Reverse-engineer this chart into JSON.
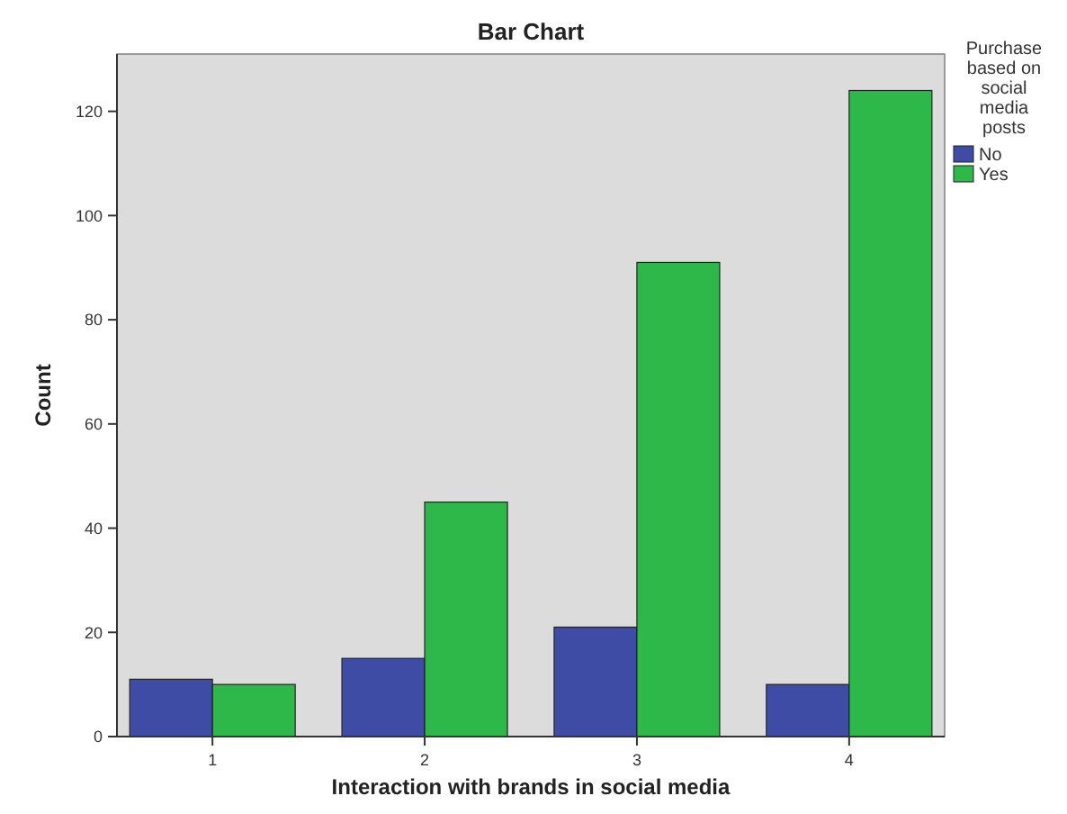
{
  "chart_data": {
    "type": "bar",
    "title": "Bar Chart",
    "xlabel": "Interaction with brands in social media",
    "ylabel": "Count",
    "legend_title": "Purchase based on social media posts",
    "categories": [
      "1",
      "2",
      "3",
      "4"
    ],
    "series": [
      {
        "name": "No",
        "color": "#3f4ca6",
        "values": [
          11,
          15,
          21,
          10
        ]
      },
      {
        "name": "Yes",
        "color": "#2fb84a",
        "values": [
          10,
          45,
          91,
          124
        ]
      }
    ],
    "ylim": [
      0,
      131
    ],
    "yticks": [
      0,
      20,
      40,
      60,
      80,
      100,
      120
    ],
    "grid": false,
    "legend": "top right"
  }
}
